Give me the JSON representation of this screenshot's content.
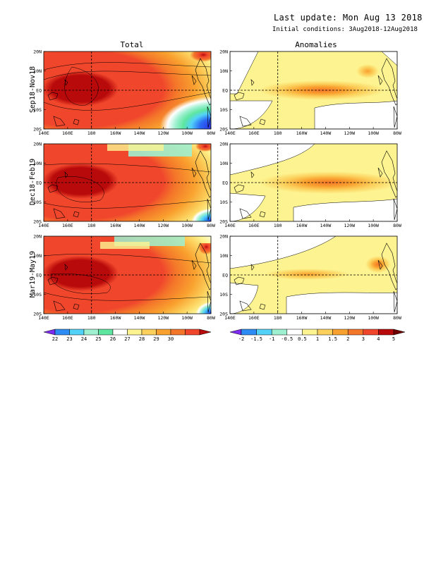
{
  "header": {
    "last_update": "Last update: Mon Aug 13 2018",
    "initial_conditions": "Initial conditions: 3Aug2018-12Aug2018"
  },
  "columns": {
    "total": "Total",
    "anomalies": "Anomalies"
  },
  "rows": [
    "Sep18-Nov18",
    "Dec18-Feb19",
    "Mar19-May19"
  ],
  "lon_ticks": [
    "140E",
    "160E",
    "180",
    "160W",
    "140W",
    "120W",
    "100W",
    "80W"
  ],
  "lat_ticks": [
    "20N",
    "10N",
    "EQ",
    "10S",
    "20S"
  ],
  "colorbars": {
    "total": {
      "labels": [
        "22",
        "23",
        "24",
        "25",
        "26",
        "27",
        "28",
        "29",
        "30"
      ],
      "colors": [
        "#7d2cf0",
        "#2c8cf4",
        "#52d2f8",
        "#9ef0d0",
        "#5ee6a0",
        "#ffffff",
        "#fdf491",
        "#fcd05c",
        "#f9a12f",
        "#f4762a",
        "#f0462c",
        "#b80a0a"
      ]
    },
    "anomalies": {
      "labels": [
        "-2",
        "-1.5",
        "-1",
        "-0.5",
        "0.5",
        "1",
        "1.5",
        "2",
        "3",
        "4",
        "5"
      ],
      "colors": [
        "#7d2cf0",
        "#2c8cf4",
        "#52d2f8",
        "#9ef0d0",
        "#ffffff",
        "#fdf491",
        "#fcd05c",
        "#f9a12f",
        "#f4762a",
        "#f0462c",
        "#b80a0a",
        "#6e0000"
      ]
    }
  },
  "chart_data": [
    {
      "type": "heatmap",
      "title": "Total",
      "row_label": "Sep18-Nov18",
      "xlim": [
        140,
        280
      ],
      "ylim": [
        -20,
        20
      ],
      "levels": [
        22,
        23,
        24,
        25,
        26,
        27,
        28,
        29,
        30
      ],
      "warm_pool_max_c": 30.5,
      "east_pacific_min_c": 21.5
    },
    {
      "type": "heatmap",
      "title": "Anomalies",
      "row_label": "Sep18-Nov18",
      "xlim": [
        140,
        280
      ],
      "ylim": [
        -20,
        20
      ],
      "levels": [
        -2,
        -1.5,
        -1,
        -0.5,
        0.5,
        1,
        1.5,
        2,
        3,
        4,
        5
      ],
      "equatorial_max_anomaly_c": 1.5
    },
    {
      "type": "heatmap",
      "title": "Total",
      "row_label": "Dec18-Feb19",
      "xlim": [
        140,
        280
      ],
      "ylim": [
        -20,
        20
      ],
      "levels": [
        22,
        23,
        24,
        25,
        26,
        27,
        28,
        29,
        30
      ]
    },
    {
      "type": "heatmap",
      "title": "Anomalies",
      "row_label": "Dec18-Feb19",
      "xlim": [
        140,
        280
      ],
      "ylim": [
        -20,
        20
      ],
      "levels": [
        -2,
        -1.5,
        -1,
        -0.5,
        0.5,
        1,
        1.5,
        2,
        3,
        4,
        5
      ],
      "equatorial_max_anomaly_c": 1.5
    },
    {
      "type": "heatmap",
      "title": "Total",
      "row_label": "Mar19-May19",
      "xlim": [
        140,
        280
      ],
      "ylim": [
        -20,
        20
      ],
      "levels": [
        22,
        23,
        24,
        25,
        26,
        27,
        28,
        29,
        30
      ]
    },
    {
      "type": "heatmap",
      "title": "Anomalies",
      "row_label": "Mar19-May19",
      "xlim": [
        140,
        280
      ],
      "ylim": [
        -20,
        20
      ],
      "levels": [
        -2,
        -1.5,
        -1,
        -0.5,
        0.5,
        1,
        1.5,
        2,
        3,
        4,
        5
      ],
      "equatorial_max_anomaly_c": 1.0
    }
  ]
}
